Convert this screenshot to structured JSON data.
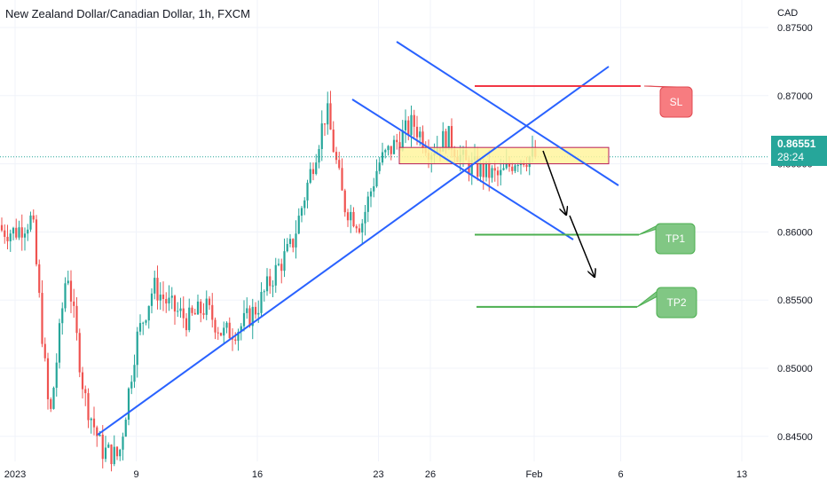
{
  "title": "New Zealand Dollar/Canadian Dollar, 1h, FXCM",
  "currency": "CAD",
  "price_tag": {
    "value": "0.86551",
    "timer": "28:24"
  },
  "colors": {
    "up": "#26a69a",
    "down": "#ef5350",
    "trend": "#2962ff",
    "sl": "#f23645",
    "tp": "#4caf50",
    "zone_fill": "#fff59d",
    "tp_box": "#81c784",
    "sl_box": "#f77c80",
    "arrow": "#000000"
  },
  "chart_data": {
    "type": "candlestick",
    "title": "New Zealand Dollar/Canadian Dollar, 1h, FXCM",
    "ylim": [
      0.8418,
      0.8763
    ],
    "y_ticks": [
      "0.84500",
      "0.85000",
      "0.85500",
      "0.86000",
      "0.86500",
      "0.87000",
      "0.87500"
    ],
    "y_tick_values": [
      0.845,
      0.85,
      0.855,
      0.86,
      0.865,
      0.87,
      0.875
    ],
    "x_ticks": [
      "2023",
      "9",
      "16",
      "23",
      "26",
      "Feb",
      "6",
      "13"
    ],
    "x_tick_dates": [
      "2023-01-02",
      "2023-01-09",
      "2023-01-16",
      "2023-01-23",
      "2023-01-26",
      "2023-02-01",
      "2023-02-06",
      "2023-02-13"
    ],
    "price_path": [
      [
        "2022-12-30",
        0.8605
      ],
      [
        "2023-01-02",
        0.86
      ],
      [
        "2023-01-03",
        0.861
      ],
      [
        "2023-01-04",
        0.846
      ],
      [
        "2023-01-05",
        0.8575
      ],
      [
        "2023-01-06",
        0.848
      ],
      [
        "2023-01-07",
        0.844
      ],
      [
        "2023-01-08",
        0.8435
      ],
      [
        "2023-01-09",
        0.852
      ],
      [
        "2023-01-10",
        0.856
      ],
      [
        "2023-01-11",
        0.8545
      ],
      [
        "2023-01-12",
        0.8535
      ],
      [
        "2023-01-13",
        0.8545
      ],
      [
        "2023-01-14",
        0.8525
      ],
      [
        "2023-01-15",
        0.853
      ],
      [
        "2023-01-16",
        0.8545
      ],
      [
        "2023-01-17",
        0.857
      ],
      [
        "2023-01-18",
        0.859
      ],
      [
        "2023-01-19",
        0.864
      ],
      [
        "2023-01-20",
        0.869
      ],
      [
        "2023-01-21",
        0.862
      ],
      [
        "2023-01-22",
        0.8605
      ],
      [
        "2023-01-23",
        0.865
      ],
      [
        "2023-01-24",
        0.8665
      ],
      [
        "2023-01-25",
        0.868
      ],
      [
        "2023-01-26",
        0.866
      ],
      [
        "2023-01-27",
        0.867
      ],
      [
        "2023-01-28",
        0.865
      ],
      [
        "2023-01-29",
        0.8645
      ],
      [
        "2023-01-30",
        0.864
      ],
      [
        "2023-01-31",
        0.8655
      ]
    ],
    "annotations": {
      "sl_line": 0.8707,
      "tp1_line": 0.8598,
      "tp2_line": 0.8545,
      "zone": [
        0.865,
        0.8662
      ],
      "current_price_line": 0.86551,
      "labels": [
        "SL",
        "TP1",
        "TP2"
      ]
    },
    "grid": true
  }
}
